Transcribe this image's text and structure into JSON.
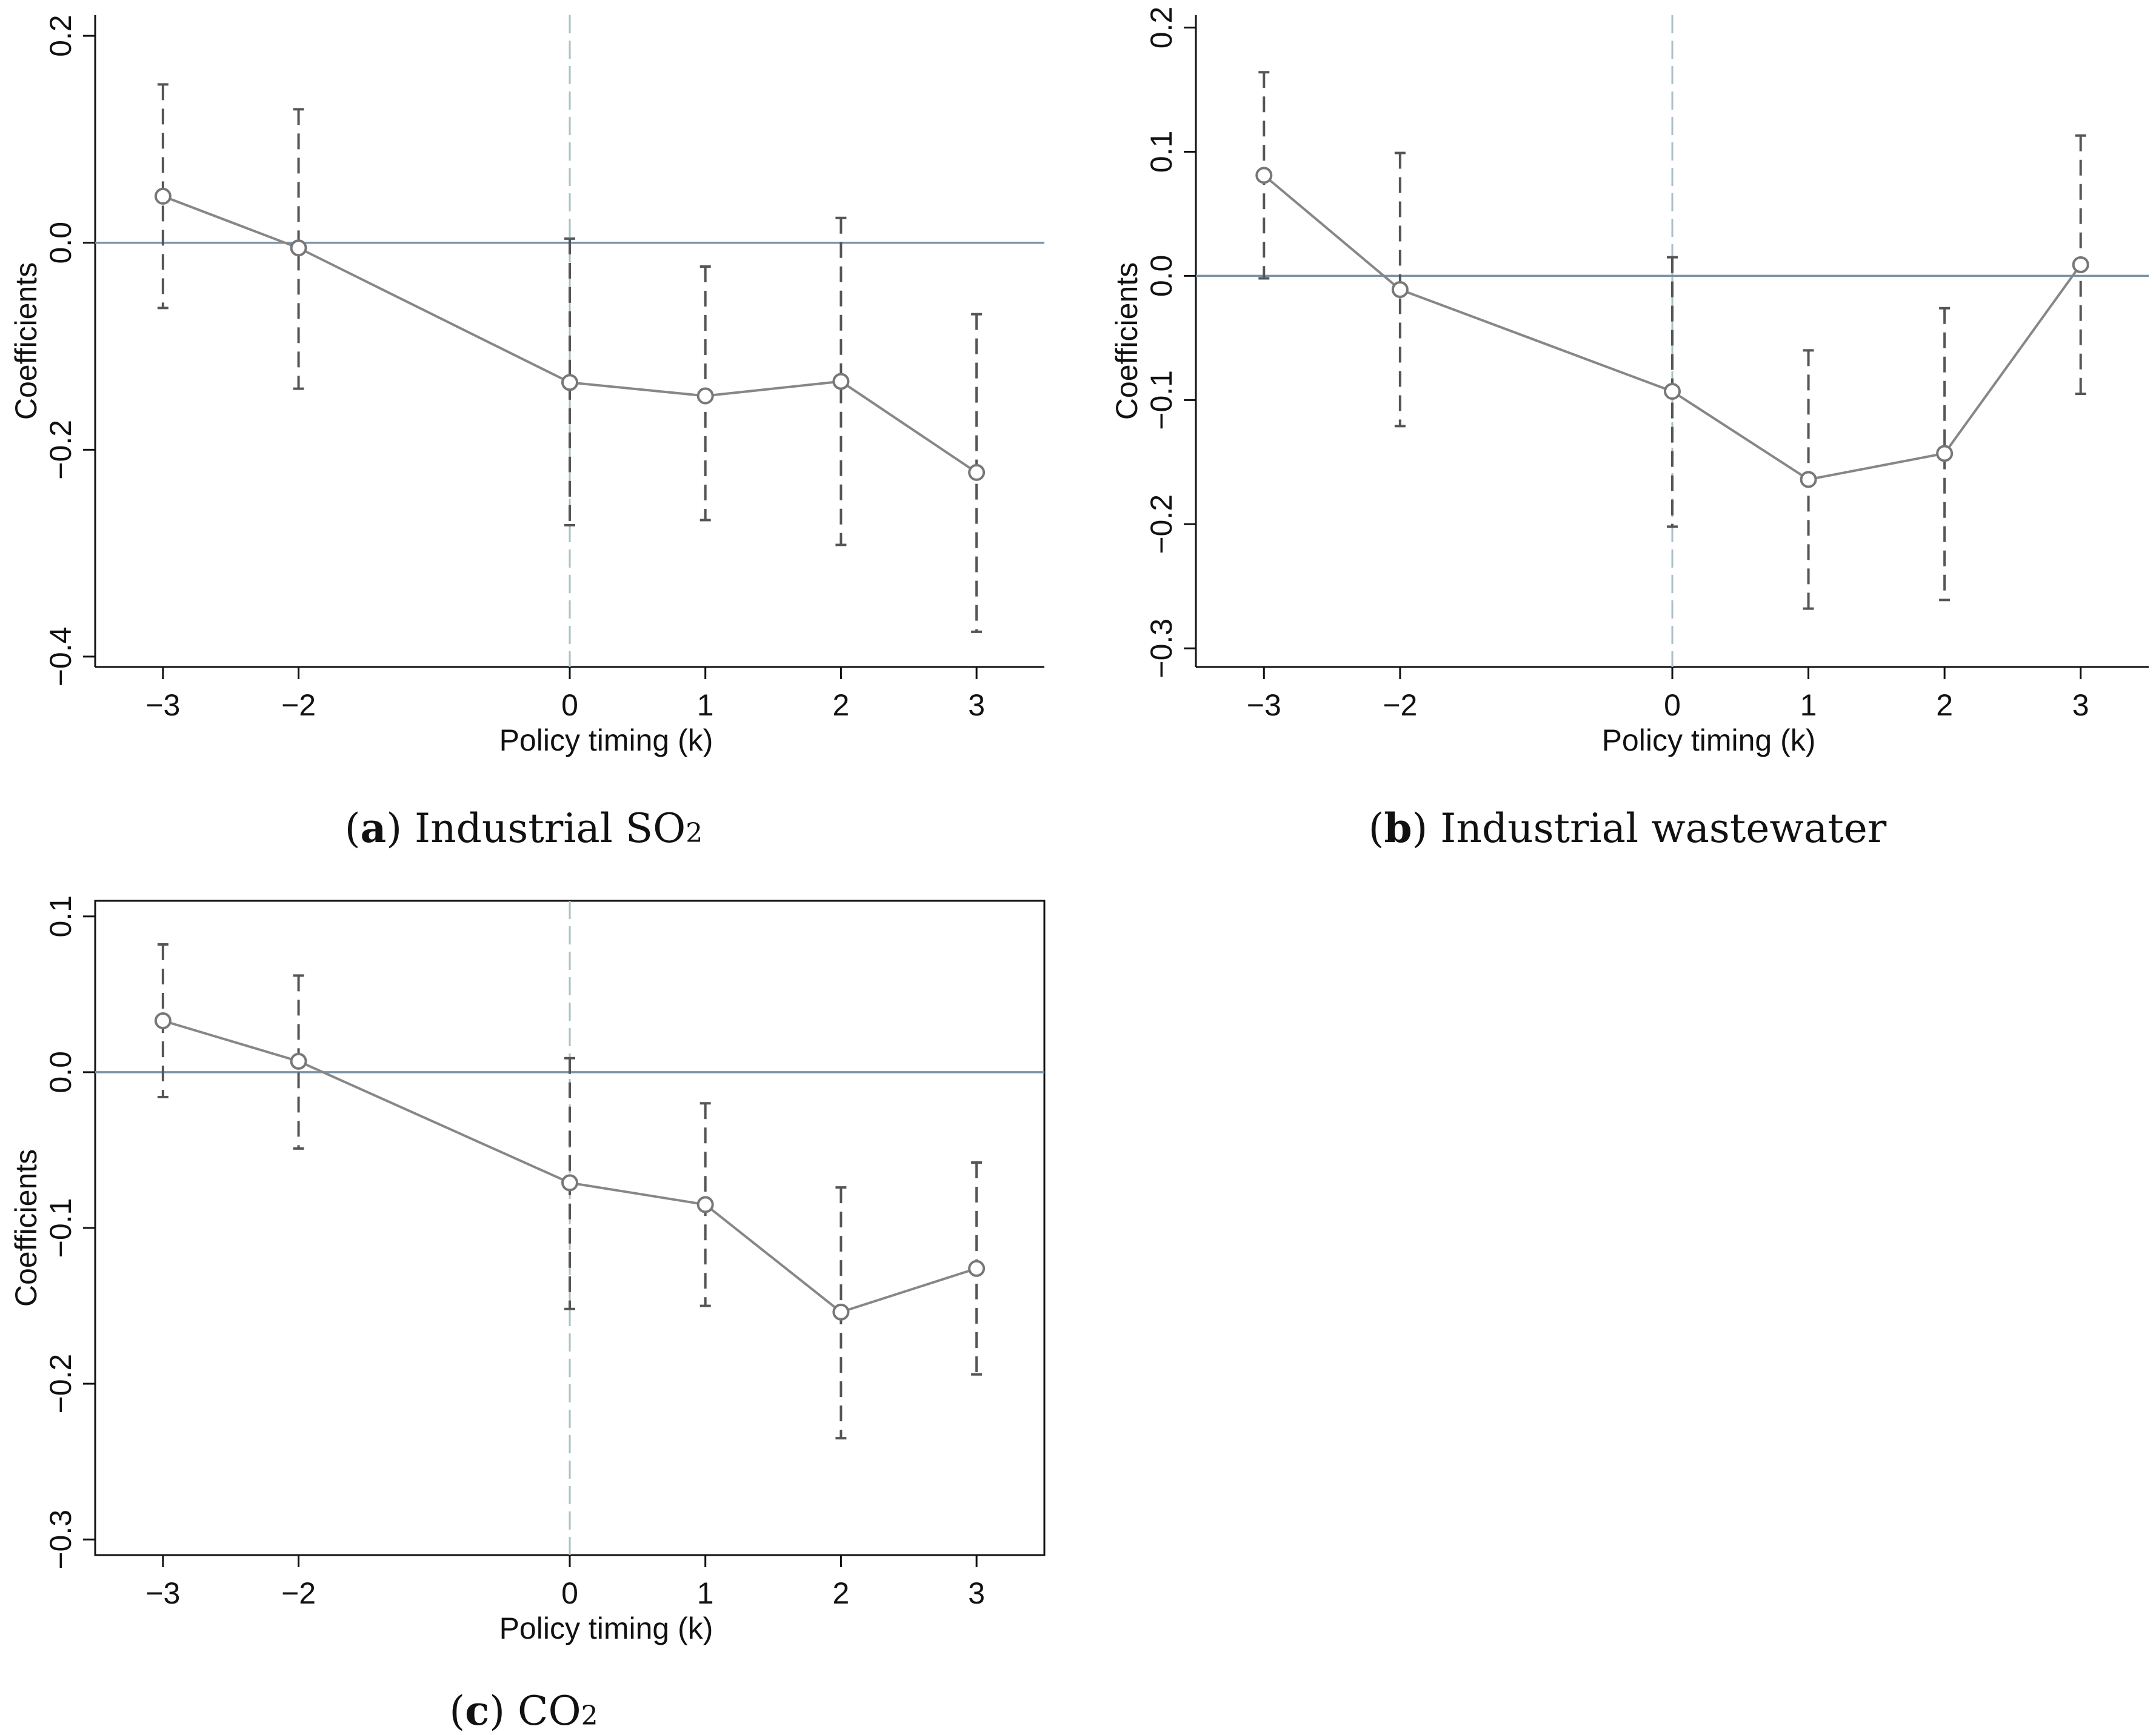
{
  "chart_data": [
    {
      "id": "a",
      "type": "line",
      "caption": {
        "letter": "a",
        "text": "Industrial SO",
        "subscript": "2"
      },
      "xlabel": "Policy timing (k)",
      "ylabel": "Coefficients",
      "categories": [
        "−3",
        "−2",
        "0",
        "1",
        "2",
        "3"
      ],
      "x": [
        -3,
        -2,
        0,
        1,
        2,
        3
      ],
      "xlim": [
        -3.5,
        3.5
      ],
      "ylim": [
        -0.41,
        0.22
      ],
      "yticks": [
        0.2,
        0.0,
        -0.2,
        -0.4
      ],
      "ytick_labels": [
        "0.2",
        "0.0",
        "−0.2",
        "−0.4"
      ],
      "reference_y": 0,
      "reference_x": 0,
      "series": [
        {
          "name": "coefficient",
          "values": [
            0.045,
            -0.005,
            -0.135,
            -0.148,
            -0.134,
            -0.222
          ],
          "ci_upper": [
            0.153,
            0.129,
            0.004,
            -0.023,
            0.024,
            -0.069
          ],
          "ci_lower": [
            -0.063,
            -0.141,
            -0.273,
            -0.268,
            -0.292,
            -0.376
          ]
        }
      ],
      "colors": {
        "line": "#878787",
        "ci": "#555555",
        "reference_h": "#7b93a6",
        "reference_v": "#a9c0c6"
      }
    },
    {
      "id": "b",
      "type": "line",
      "caption": {
        "letter": "b",
        "text": "Industrial wastewater",
        "subscript": ""
      },
      "xlabel": "Policy timing (k)",
      "ylabel": "Coefficients",
      "categories": [
        "−3",
        "−2",
        "0",
        "1",
        "2",
        "3"
      ],
      "x": [
        -3,
        -2,
        0,
        1,
        2,
        3
      ],
      "xlim": [
        -3.5,
        3.5
      ],
      "ylim": [
        -0.315,
        0.21
      ],
      "yticks": [
        0.2,
        0.1,
        0.0,
        -0.1,
        -0.2,
        -0.3
      ],
      "ytick_labels": [
        "0.2",
        "0.1",
        "0.0",
        "−0.1",
        "−0.2",
        "−0.3"
      ],
      "reference_y": 0,
      "reference_x": 0,
      "series": [
        {
          "name": "coefficient",
          "values": [
            0.081,
            -0.011,
            -0.093,
            -0.164,
            -0.143,
            0.009
          ],
          "ci_upper": [
            0.164,
            0.099,
            0.015,
            -0.06,
            -0.026,
            0.113
          ],
          "ci_lower": [
            -0.002,
            -0.121,
            -0.202,
            -0.268,
            -0.261,
            -0.095
          ]
        }
      ],
      "colors": {
        "line": "#878787",
        "ci": "#555555",
        "reference_h": "#7b93a6",
        "reference_v": "#a9c0c6"
      }
    },
    {
      "id": "c",
      "type": "line",
      "caption": {
        "letter": "c",
        "text": "CO",
        "subscript": "2"
      },
      "xlabel": "Policy timing (k)",
      "ylabel": "Coefficients",
      "categories": [
        "−3",
        "−2",
        "0",
        "1",
        "2",
        "3"
      ],
      "x": [
        -3,
        -2,
        0,
        1,
        2,
        3
      ],
      "xlim": [
        -3.5,
        3.5
      ],
      "ylim": [
        -0.31,
        0.11
      ],
      "yticks": [
        0.1,
        0.0,
        -0.1,
        -0.2,
        -0.3
      ],
      "ytick_labels": [
        "0.1",
        "0.0",
        "−0.1",
        "−0.2",
        "−0.3"
      ],
      "reference_y": 0,
      "reference_x": 0,
      "series": [
        {
          "name": "coefficient",
          "values": [
            0.033,
            0.007,
            -0.071,
            -0.085,
            -0.154,
            -0.126
          ],
          "ci_upper": [
            0.082,
            0.062,
            0.009,
            -0.02,
            -0.074,
            -0.058
          ],
          "ci_lower": [
            -0.016,
            -0.049,
            -0.152,
            -0.15,
            -0.235,
            -0.194
          ]
        }
      ],
      "colors": {
        "line": "#878787",
        "ci": "#555555",
        "reference_h": "#7b93a6",
        "reference_v": "#a9c0c6"
      }
    }
  ]
}
